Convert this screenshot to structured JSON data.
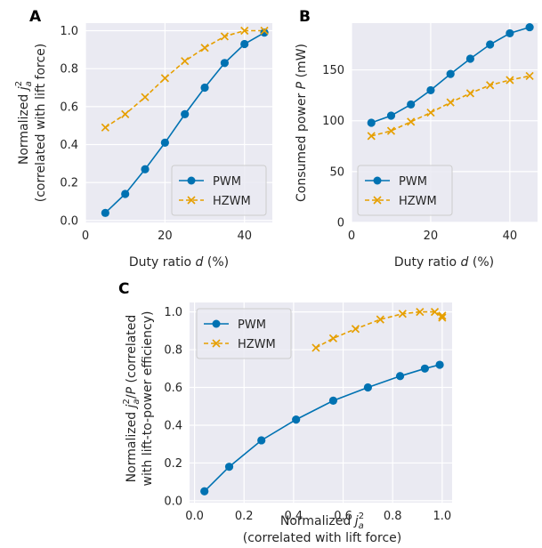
{
  "colors": {
    "pwm": "#0072B2",
    "hzwm": "#E69F00",
    "plot_bg": "#EAEAF2",
    "grid": "#FFFFFF"
  },
  "chart_data": [
    {
      "id": "A",
      "type": "line",
      "panel_letter": "A",
      "xlabel_main": "Duty ratio ",
      "xlabel_var": "d",
      "xlabel_unit": " (%)",
      "ylabel_line1_pre": "Normalized  ",
      "ylabel_line1_sym": "j",
      "ylabel_line1_sub": "a",
      "ylabel_line1_sup": "2",
      "ylabel_line2": "(correlated with lift force)",
      "xlim": [
        0,
        47
      ],
      "ylim": [
        -0.01,
        1.04
      ],
      "xticks": [
        0,
        20,
        40
      ],
      "yticks": [
        0.0,
        0.2,
        0.4,
        0.6,
        0.8,
        1.0
      ],
      "xtick_labels": [
        "0",
        "20",
        "40"
      ],
      "ytick_labels": [
        "0.0",
        "0.2",
        "0.4",
        "0.6",
        "0.8",
        "1.0"
      ],
      "legend": "lower-right",
      "series": [
        {
          "name": "PWM",
          "marker": "circle",
          "x": [
            5,
            10,
            15,
            20,
            25,
            30,
            35,
            40,
            45
          ],
          "y": [
            0.04,
            0.14,
            0.27,
            0.41,
            0.56,
            0.7,
            0.83,
            0.93,
            0.99
          ]
        },
        {
          "name": "HZWM",
          "marker": "x",
          "x": [
            5,
            10,
            15,
            20,
            25,
            30,
            35,
            40,
            45
          ],
          "y": [
            0.49,
            0.56,
            0.65,
            0.75,
            0.84,
            0.91,
            0.97,
            1.0,
            1.0
          ]
        }
      ]
    },
    {
      "id": "B",
      "type": "line",
      "panel_letter": "B",
      "xlabel_main": "Duty ratio ",
      "xlabel_var": "d",
      "xlabel_unit": " (%)",
      "ylabel_pre": "Consumed power ",
      "ylabel_var": "P",
      "ylabel_unit": " (mW)",
      "xlim": [
        0,
        47
      ],
      "ylim": [
        0,
        196
      ],
      "xticks": [
        0,
        20,
        40
      ],
      "yticks": [
        0,
        50,
        100,
        150
      ],
      "xtick_labels": [
        "0",
        "20",
        "40"
      ],
      "ytick_labels": [
        "0",
        "50",
        "100",
        "150"
      ],
      "legend": "lower-left",
      "series": [
        {
          "name": "PWM",
          "marker": "circle",
          "x": [
            5,
            10,
            15,
            20,
            25,
            30,
            35,
            40,
            45
          ],
          "y": [
            98,
            105,
            116,
            130,
            146,
            161,
            175,
            186,
            192
          ]
        },
        {
          "name": "HZWM",
          "marker": "x",
          "x": [
            5,
            10,
            15,
            20,
            25,
            30,
            35,
            40,
            45
          ],
          "y": [
            85,
            90,
            99,
            108,
            118,
            127,
            135,
            140,
            144
          ]
        }
      ]
    },
    {
      "id": "C",
      "type": "line",
      "panel_letter": "C",
      "xlabel_line1_pre": "Normalized  ",
      "xlabel_line1_sym": "j",
      "xlabel_line1_sub": "a",
      "xlabel_line1_sup": "2",
      "xlabel_line2": "(correlated with lift force)",
      "ylabel_line1_pre": "Normalized  ",
      "ylabel_line1_sym": "j",
      "ylabel_line1_sub": "a",
      "ylabel_line1_sup": "2",
      "ylabel_line1_post": "/",
      "ylabel_line1_var": "P",
      "ylabel_line1_tail": " (correlated",
      "ylabel_line2": "with lift-to-power efficiency)",
      "xlim": [
        -0.02,
        1.04
      ],
      "ylim": [
        -0.01,
        1.05
      ],
      "xticks": [
        0.0,
        0.2,
        0.4,
        0.6,
        0.8,
        1.0
      ],
      "yticks": [
        0.0,
        0.2,
        0.4,
        0.6,
        0.8,
        1.0
      ],
      "xtick_labels": [
        "0.0",
        "0.2",
        "0.4",
        "0.6",
        "0.8",
        "1.0"
      ],
      "ytick_labels": [
        "0.0",
        "0.2",
        "0.4",
        "0.6",
        "0.8",
        "1.0"
      ],
      "legend": "upper-left",
      "series": [
        {
          "name": "PWM",
          "marker": "circle",
          "x": [
            0.04,
            0.14,
            0.27,
            0.41,
            0.56,
            0.7,
            0.83,
            0.93,
            0.99
          ],
          "y": [
            0.05,
            0.18,
            0.32,
            0.43,
            0.53,
            0.6,
            0.66,
            0.7,
            0.72
          ]
        },
        {
          "name": "HZWM",
          "marker": "x",
          "x": [
            0.49,
            0.56,
            0.65,
            0.75,
            0.84,
            0.91,
            0.97,
            1.0,
            1.0
          ],
          "y": [
            0.81,
            0.86,
            0.91,
            0.96,
            0.99,
            1.0,
            1.0,
            0.98,
            0.97
          ]
        }
      ]
    }
  ]
}
